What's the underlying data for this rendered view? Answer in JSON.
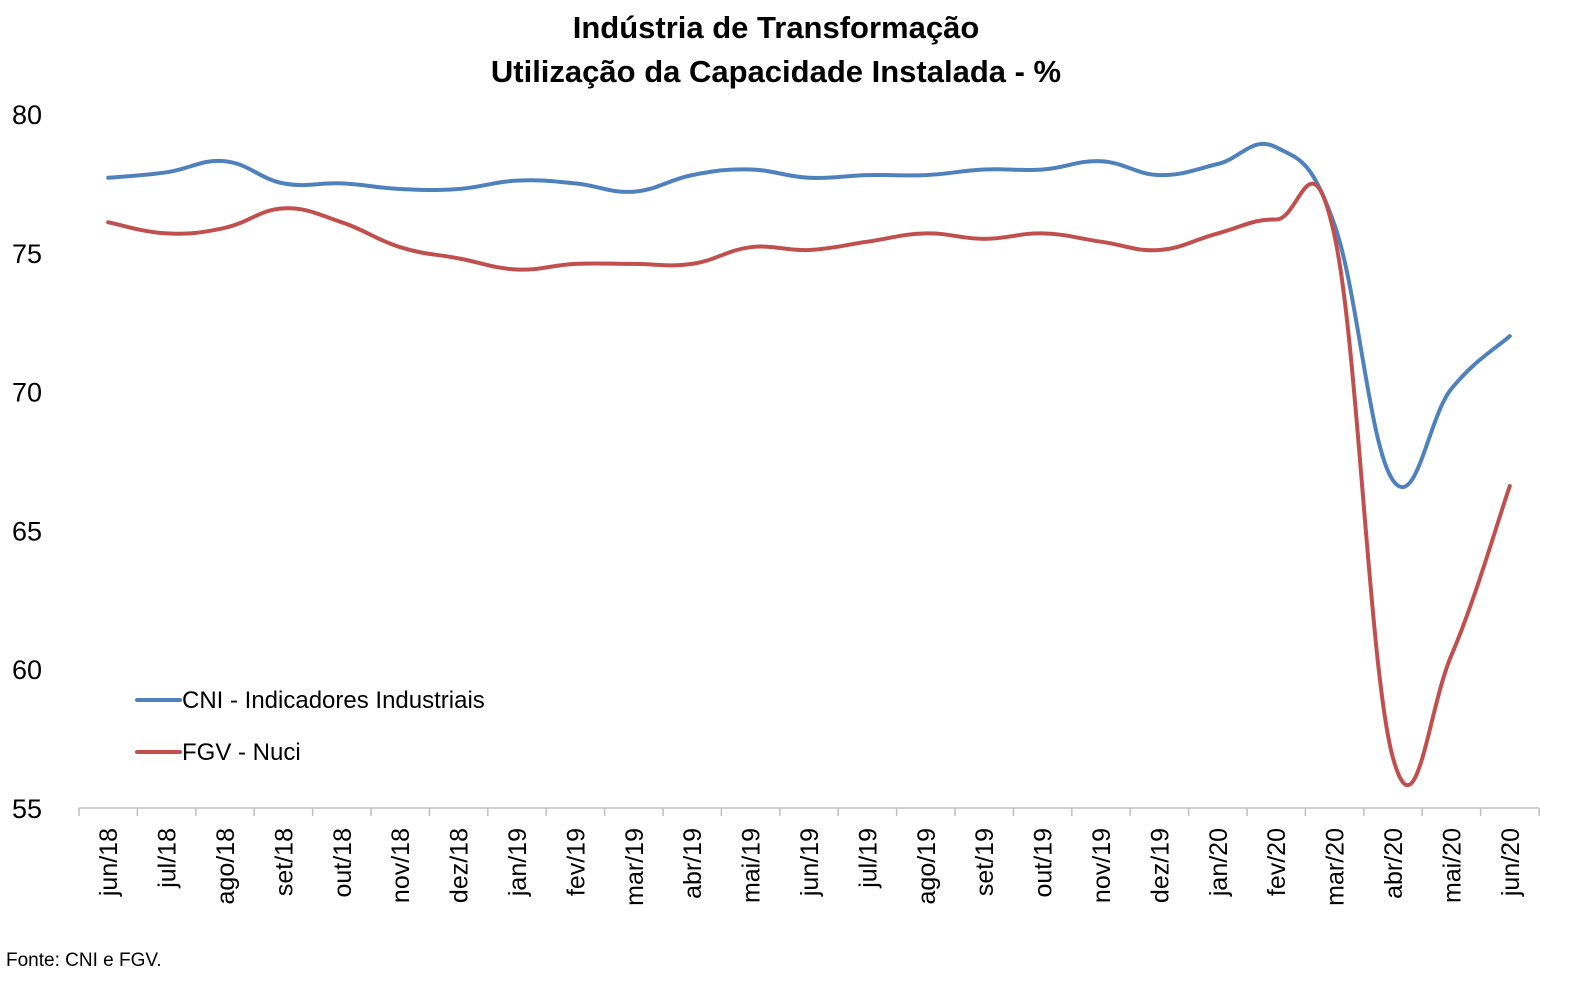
{
  "chart_data": {
    "type": "line",
    "title": "Indústria de Transformação",
    "subtitle": "Utilização da Capacidade Instalada - %",
    "xlabel": "",
    "ylabel": "",
    "ylim": [
      55,
      80
    ],
    "yticks": [
      "55",
      "60",
      "65",
      "70",
      "75",
      "80"
    ],
    "grid": false,
    "legend_position": "bottom-left",
    "categories": [
      "jun/18",
      "jul/18",
      "ago/18",
      "set/18",
      "out/18",
      "nov/18",
      "dez/18",
      "jan/19",
      "fev/19",
      "mar/19",
      "abr/19",
      "mai/19",
      "jun/19",
      "jul/19",
      "ago/19",
      "set/19",
      "out/19",
      "nov/19",
      "dez/19",
      "jan/20",
      "fev/20",
      "mar/20",
      "abr/20",
      "mai/20",
      "jun/20"
    ],
    "series": [
      {
        "name": "CNI - Indicadores Industriais",
        "color": "#4f81bd",
        "values": [
          77.7,
          77.9,
          78.3,
          77.5,
          77.5,
          77.3,
          77.3,
          77.6,
          77.5,
          77.2,
          77.8,
          78.0,
          77.7,
          77.8,
          77.8,
          78.0,
          78.0,
          78.3,
          77.8,
          78.2,
          78.8,
          76.0,
          66.8,
          70.1,
          72.0
        ]
      },
      {
        "name": "FGV - Nuci",
        "color": "#c0504d",
        "values": [
          76.1,
          75.7,
          75.9,
          76.6,
          76.1,
          75.2,
          74.8,
          74.4,
          74.6,
          74.6,
          74.6,
          75.2,
          75.1,
          75.4,
          75.7,
          75.5,
          75.7,
          75.4,
          75.1,
          75.7,
          76.2,
          75.6,
          56.8,
          60.5,
          66.6
        ]
      }
    ]
  },
  "source": "Fonte: CNI e FGV."
}
